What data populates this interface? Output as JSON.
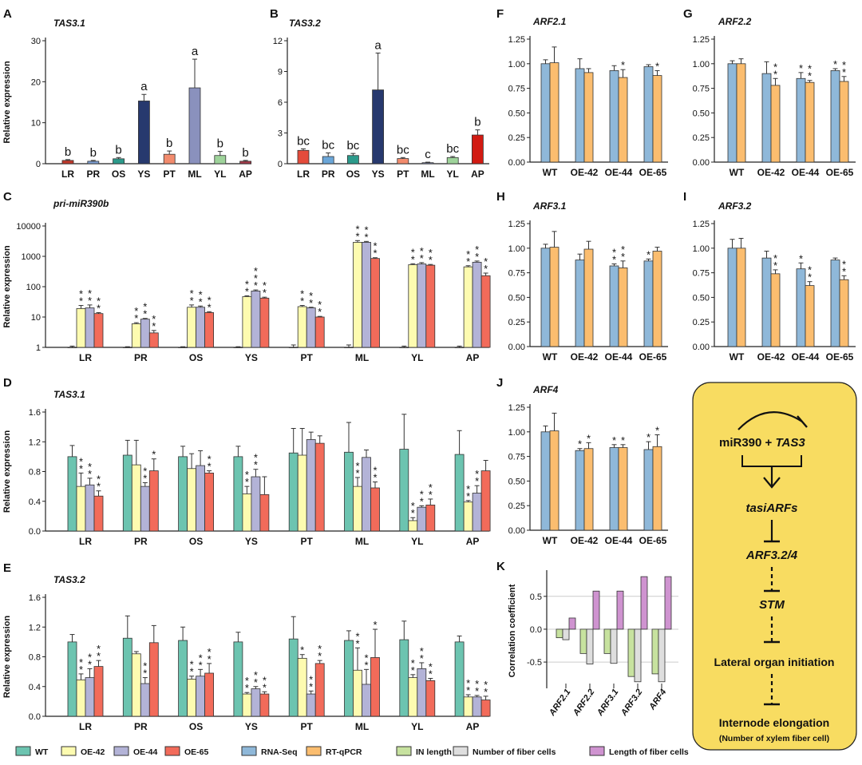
{
  "colors": {
    "wt": "#6cc4b0",
    "oe42": "#fdfbb0",
    "oe44": "#b3b3d7",
    "oe65": "#f26b5a",
    "rnaseq": "#8fb8d9",
    "rtqpcr": "#fbbd6f",
    "inlength": "#c7e29f",
    "nfiber": "#dedede",
    "lfiber": "#cf93d0",
    "box": "#f8dc61",
    "A": [
      "#c0392b",
      "#7d9fd3",
      "#2c9a8b",
      "#27396e",
      "#f28b6d",
      "#8a91bd",
      "#9ed39a",
      "#a63a4a"
    ],
    "B": [
      "#e44b3b",
      "#6ba6d8",
      "#2c9a8b",
      "#27396e",
      "#f28b6d",
      "#8a91bd",
      "#9ed39a",
      "#d11a12"
    ]
  },
  "legend": {
    "wt": "WT",
    "oe42": "OE-42",
    "oe44": "OE-44",
    "oe65": "OE-65",
    "rnaseq": "RNA-Seq",
    "rtqpcr": "RT-qPCR",
    "inlength": "IN length",
    "nfiber": "Number of fiber cells",
    "lfiber": "Length of fiber cells"
  },
  "pathway": {
    "mir390": "miR390 + ",
    "tas3": "TAS3",
    "tasiarfs": "tasiARFs",
    "arf": "ARF3.2/4",
    "stm": "STM",
    "lateral": "Lateral organ initiation",
    "internode": "Internode elongation",
    "sub": "(Number of xylem fiber cell)"
  },
  "chart_data": [
    {
      "panel": "A",
      "type": "bar",
      "title": "TAS3.1",
      "ylabel": "Relative expression",
      "categories": [
        "LR",
        "PR",
        "OS",
        "YS",
        "PT",
        "ML",
        "YL",
        "AP"
      ],
      "values": [
        0.8,
        0.6,
        1.2,
        15.3,
        2.3,
        18.5,
        2.0,
        0.6
      ],
      "errors": [
        0.2,
        0.2,
        0.3,
        1.6,
        0.8,
        7.0,
        1.0,
        0.2
      ],
      "letters": [
        "b",
        "b",
        "b",
        "a",
        "b",
        "a",
        "b",
        "b"
      ],
      "ylim": [
        0,
        30
      ],
      "yticks": [
        0,
        10,
        20,
        30
      ]
    },
    {
      "panel": "B",
      "type": "bar",
      "title": "TAS3.2",
      "categories": [
        "LR",
        "PR",
        "OS",
        "YS",
        "PT",
        "ML",
        "YL",
        "AP"
      ],
      "values": [
        1.3,
        0.7,
        0.8,
        7.2,
        0.5,
        0.1,
        0.6,
        2.8
      ],
      "errors": [
        0.15,
        0.35,
        0.2,
        3.6,
        0.1,
        0.05,
        0.1,
        0.5
      ],
      "letters": [
        "bc",
        "bc",
        "bc",
        "a",
        "bc",
        "c",
        "bc",
        "b"
      ],
      "ylim": [
        0,
        12
      ],
      "yticks": [
        0,
        3,
        6,
        9,
        12
      ]
    },
    {
      "panel": "C",
      "type": "bar",
      "title": "pri-miR390b",
      "ylabel": "Relative expression",
      "log": true,
      "categories": [
        "LR",
        "PR",
        "OS",
        "YS",
        "PT",
        "ML",
        "YL",
        "AP"
      ],
      "series": [
        {
          "name": "WT",
          "values": [
            1,
            1,
            1,
            1,
            1,
            1,
            1,
            1
          ],
          "errors": [
            1.1,
            1.05,
            1.05,
            1.05,
            1.2,
            1.2,
            1.1,
            1.1
          ]
        },
        {
          "name": "OE-42",
          "values": [
            19,
            6,
            21,
            47,
            22,
            2900,
            530,
            450
          ],
          "errors": [
            24,
            6.5,
            25,
            50,
            24,
            3300,
            570,
            490
          ]
        },
        {
          "name": "OE-44",
          "values": [
            20,
            8.5,
            21,
            72,
            20,
            2900,
            560,
            640
          ],
          "errors": [
            25,
            9,
            23,
            78,
            21,
            3100,
            620,
            700
          ]
        },
        {
          "name": "OE-65",
          "values": [
            13,
            3,
            14,
            42,
            10,
            850,
            510,
            230
          ],
          "errors": [
            14,
            3.6,
            15,
            45,
            10.5,
            900,
            540,
            280
          ]
        }
      ],
      "stars": [
        [
          0,
          2,
          2,
          2
        ],
        [
          0,
          2,
          2,
          2
        ],
        [
          0,
          2,
          2,
          2
        ],
        [
          0,
          2,
          3,
          2
        ],
        [
          0,
          2,
          2,
          2
        ],
        [
          0,
          2,
          2,
          2
        ],
        [
          0,
          2,
          2,
          2
        ],
        [
          0,
          2,
          2,
          2
        ]
      ],
      "ylim": [
        1,
        10000
      ],
      "yticks": [
        1,
        10,
        100,
        1000,
        10000
      ]
    },
    {
      "panel": "D",
      "type": "bar",
      "title": "TAS3.1",
      "ylabel": "Relative expression",
      "categories": [
        "LR",
        "PR",
        "OS",
        "YS",
        "PT",
        "ML",
        "YL",
        "AP"
      ],
      "series": [
        {
          "name": "WT",
          "values": [
            1.0,
            1.02,
            1.0,
            1.0,
            1.05,
            1.06,
            1.1,
            1.03
          ],
          "errors": [
            0.15,
            0.2,
            0.14,
            0.14,
            0.33,
            0.4,
            0.47,
            0.32
          ]
        },
        {
          "name": "OE-42",
          "values": [
            0.6,
            0.89,
            0.84,
            0.5,
            1.02,
            0.6,
            0.14,
            0.39
          ],
          "errors": [
            0.18,
            0.33,
            0.2,
            0.1,
            0.36,
            0.12,
            0.04,
            0.02
          ]
        },
        {
          "name": "OE-44",
          "values": [
            0.62,
            0.6,
            0.88,
            0.73,
            1.23,
            0.99,
            0.32,
            0.51
          ],
          "errors": [
            0.09,
            0.05,
            0.2,
            0.1,
            0.1,
            0.1,
            0.02,
            0.1
          ]
        },
        {
          "name": "OE-65",
          "values": [
            0.47,
            0.81,
            0.78,
            0.49,
            1.18,
            0.58,
            0.35,
            0.81
          ],
          "errors": [
            0.07,
            0.16,
            0.03,
            0.24,
            0.1,
            0.08,
            0.08,
            0.14
          ]
        }
      ],
      "stars": [
        [
          0,
          2,
          2,
          2
        ],
        [
          0,
          0,
          2,
          1
        ],
        [
          0,
          0,
          0,
          2
        ],
        [
          0,
          2,
          2,
          0
        ],
        [
          0,
          0,
          0,
          0
        ],
        [
          0,
          2,
          0,
          2
        ],
        [
          0,
          2,
          2,
          2
        ],
        [
          0,
          2,
          2,
          0
        ]
      ],
      "ylim": [
        0,
        1.6
      ],
      "yticks": [
        "0.0",
        "0.4",
        "0.8",
        "1.2",
        "1.6"
      ]
    },
    {
      "panel": "E",
      "type": "bar",
      "title": "TAS3.2",
      "ylabel": "Relative expression",
      "categories": [
        "LR",
        "PR",
        "OS",
        "YS",
        "PT",
        "ML",
        "YL",
        "AP"
      ],
      "series": [
        {
          "name": "WT",
          "values": [
            1.0,
            1.05,
            1.02,
            1.0,
            1.04,
            1.02,
            1.03,
            1.0
          ],
          "errors": [
            0.1,
            0.3,
            0.18,
            0.13,
            0.3,
            0.13,
            0.25,
            0.08
          ]
        },
        {
          "name": "OE-42",
          "values": [
            0.49,
            0.84,
            0.5,
            0.3,
            0.78,
            0.62,
            0.52,
            0.26
          ],
          "errors": [
            0.08,
            0.03,
            0.04,
            0.02,
            0.05,
            0.3,
            0.04,
            0.03
          ]
        },
        {
          "name": "OE-44",
          "values": [
            0.52,
            0.44,
            0.54,
            0.37,
            0.3,
            0.43,
            0.64,
            0.26
          ],
          "errors": [
            0.12,
            0.08,
            0.09,
            0.03,
            0.04,
            0.2,
            0.08,
            0.02
          ]
        },
        {
          "name": "OE-65",
          "values": [
            0.67,
            0.99,
            0.58,
            0.3,
            0.71,
            0.79,
            0.48,
            0.22
          ],
          "errors": [
            0.08,
            0.23,
            0.13,
            0.03,
            0.04,
            0.38,
            0.03,
            0.05
          ]
        }
      ],
      "stars": [
        [
          0,
          2,
          2,
          2
        ],
        [
          0,
          0,
          2,
          0
        ],
        [
          0,
          2,
          2,
          2
        ],
        [
          0,
          2,
          2,
          2
        ],
        [
          0,
          1,
          2,
          2
        ],
        [
          0,
          2,
          2,
          1
        ],
        [
          0,
          2,
          2,
          2
        ],
        [
          0,
          2,
          2,
          2
        ]
      ],
      "ylim": [
        0,
        1.6
      ],
      "yticks": [
        "0.0",
        "0.4",
        "0.8",
        "1.2",
        "1.6"
      ]
    },
    {
      "panel": "F",
      "type": "bar",
      "title": "ARF2.1",
      "categories": [
        "WT",
        "OE-42",
        "OE-44",
        "OE-65"
      ],
      "series": [
        {
          "name": "RNA-Seq",
          "values": [
            1.0,
            0.95,
            0.93,
            0.97
          ],
          "errors": [
            0.04,
            0.1,
            0.05,
            0.02
          ]
        },
        {
          "name": "RT-qPCR",
          "values": [
            1.01,
            0.91,
            0.86,
            0.88
          ],
          "errors": [
            0.16,
            0.04,
            0.08,
            0.05
          ]
        }
      ],
      "stars": [
        [
          0,
          0
        ],
        [
          0,
          0
        ],
        [
          0,
          1
        ],
        [
          0,
          1
        ]
      ],
      "ylim": [
        0,
        1.25
      ],
      "yticks": [
        "0.00",
        "0.25",
        "0.50",
        "0.75",
        "1.00",
        "1.25"
      ]
    },
    {
      "panel": "G",
      "type": "bar",
      "title": "ARF2.2",
      "categories": [
        "WT",
        "OE-42",
        "OE-44",
        "OE-65"
      ],
      "series": [
        {
          "name": "RNA-Seq",
          "values": [
            1.0,
            0.9,
            0.85,
            0.93
          ],
          "errors": [
            0.03,
            0.12,
            0.06,
            0.02
          ]
        },
        {
          "name": "RT-qPCR",
          "values": [
            1.0,
            0.78,
            0.81,
            0.82
          ],
          "errors": [
            0.05,
            0.07,
            0.02,
            0.05
          ]
        }
      ],
      "stars": [
        [
          0,
          0
        ],
        [
          0,
          2
        ],
        [
          1,
          2
        ],
        [
          1,
          2
        ]
      ],
      "ylim": [
        0,
        1.25
      ],
      "yticks": [
        "0.00",
        "0.25",
        "0.50",
        "0.75",
        "1.00",
        "1.25"
      ]
    },
    {
      "panel": "H",
      "type": "bar",
      "title": "ARF3.1",
      "categories": [
        "WT",
        "OE-42",
        "OE-44",
        "OE-65"
      ],
      "series": [
        {
          "name": "RNA-Seq",
          "values": [
            1.0,
            0.88,
            0.82,
            0.87
          ],
          "errors": [
            0.04,
            0.06,
            0.02,
            0.02
          ]
        },
        {
          "name": "RT-qPCR",
          "values": [
            1.01,
            0.99,
            0.8,
            0.97
          ],
          "errors": [
            0.16,
            0.08,
            0.07,
            0.04
          ]
        }
      ],
      "stars": [
        [
          0,
          0
        ],
        [
          0,
          0
        ],
        [
          2,
          2
        ],
        [
          1,
          0
        ]
      ],
      "ylim": [
        0,
        1.25
      ],
      "yticks": [
        "0.00",
        "0.25",
        "0.50",
        "0.75",
        "1.00",
        "1.25"
      ]
    },
    {
      "panel": "I",
      "type": "bar",
      "title": "ARF3.2",
      "categories": [
        "WT",
        "OE-42",
        "OE-44",
        "OE-65"
      ],
      "series": [
        {
          "name": "RNA-Seq",
          "values": [
            1.0,
            0.9,
            0.79,
            0.88
          ],
          "errors": [
            0.09,
            0.07,
            0.06,
            0.02
          ]
        },
        {
          "name": "RT-qPCR",
          "values": [
            1.0,
            0.74,
            0.62,
            0.68
          ],
          "errors": [
            0.1,
            0.04,
            0.04,
            0.04
          ]
        }
      ],
      "stars": [
        [
          0,
          0
        ],
        [
          0,
          2
        ],
        [
          1,
          2
        ],
        [
          0,
          2
        ]
      ],
      "ylim": [
        0,
        1.25
      ],
      "yticks": [
        "0.00",
        "0.25",
        "0.50",
        "0.75",
        "1.00",
        "1.25"
      ]
    },
    {
      "panel": "J",
      "type": "bar",
      "title": "ARF4",
      "categories": [
        "WT",
        "OE-42",
        "OE-44",
        "OE-65"
      ],
      "series": [
        {
          "name": "RNA-Seq",
          "values": [
            1.0,
            0.81,
            0.84,
            0.82
          ],
          "errors": [
            0.06,
            0.02,
            0.03,
            0.08
          ]
        },
        {
          "name": "RT-qPCR",
          "values": [
            1.01,
            0.83,
            0.84,
            0.85
          ],
          "errors": [
            0.18,
            0.06,
            0.03,
            0.12
          ]
        }
      ],
      "stars": [
        [
          0,
          0
        ],
        [
          1,
          1
        ],
        [
          1,
          1
        ],
        [
          1,
          1
        ]
      ],
      "ylim": [
        0,
        1.25
      ],
      "yticks": [
        "0.00",
        "0.25",
        "0.50",
        "0.75",
        "1.00",
        "1.25"
      ]
    },
    {
      "panel": "K",
      "type": "bar",
      "ylabel": "Correlation coefficient",
      "categories": [
        "ARF2.1",
        "ARF2.2",
        "ARF3.1",
        "ARF3.2",
        "ARF4"
      ],
      "series": [
        {
          "name": "IN length",
          "values": [
            -0.13,
            -0.37,
            -0.37,
            -0.72,
            -0.68
          ]
        },
        {
          "name": "Number of fiber cells",
          "values": [
            -0.16,
            -0.53,
            -0.52,
            -0.8,
            -0.8
          ]
        },
        {
          "name": "Length of fiber cells",
          "values": [
            0.17,
            0.58,
            0.58,
            0.8,
            0.8
          ]
        }
      ],
      "ylim": [
        -0.9,
        0.85
      ],
      "yticks": [
        "0.5",
        "0.0",
        "-0.5"
      ],
      "ytick_values": [
        0.5,
        0.0,
        -0.5
      ]
    }
  ]
}
